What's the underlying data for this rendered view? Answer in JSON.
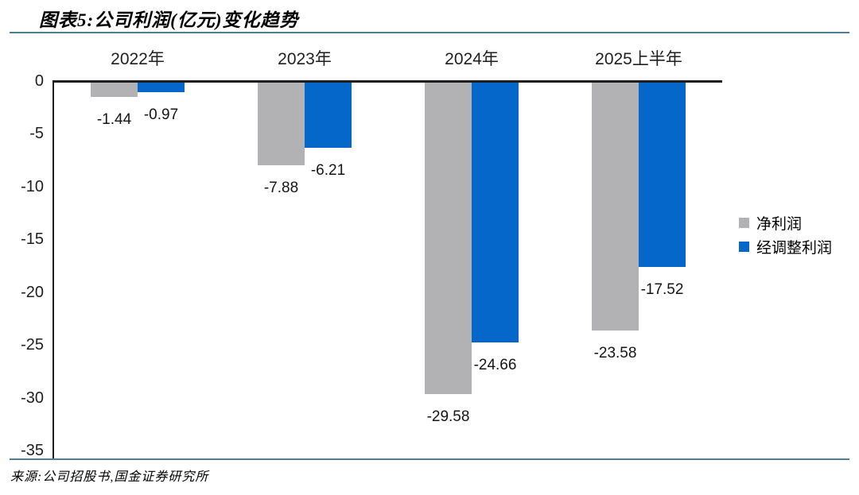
{
  "header": {
    "title": "图表5:公司利润(亿元)变化趋势"
  },
  "footer": {
    "source": "来源:公司招股书,国金证券研究所"
  },
  "colors": {
    "net-profit": "#B2B2B4",
    "adjusted-profit": "#0667CB",
    "divider": "#4D7F97",
    "axis": "#1F1F1F",
    "text": "#1F1F1F"
  },
  "chart_data": {
    "type": "bar",
    "title": "公司利润(亿元)变化趋势",
    "categories": [
      "2022年",
      "2023年",
      "2024年",
      "2025上半年"
    ],
    "series": [
      {
        "key": "net-profit",
        "name": "净利润",
        "values": [
          -1.44,
          -7.88,
          -29.58,
          -23.58
        ]
      },
      {
        "key": "adjusted-profit",
        "name": "经调整利润",
        "values": [
          -0.97,
          -6.21,
          -24.66,
          -17.52
        ]
      }
    ],
    "ylim": [
      -35,
      0
    ],
    "yticks": [
      0,
      -5,
      -10,
      -15,
      -20,
      -25,
      -30,
      -35
    ],
    "value_labels": true,
    "grid": false,
    "legend_position": "right",
    "value_label_decimals": 2
  }
}
